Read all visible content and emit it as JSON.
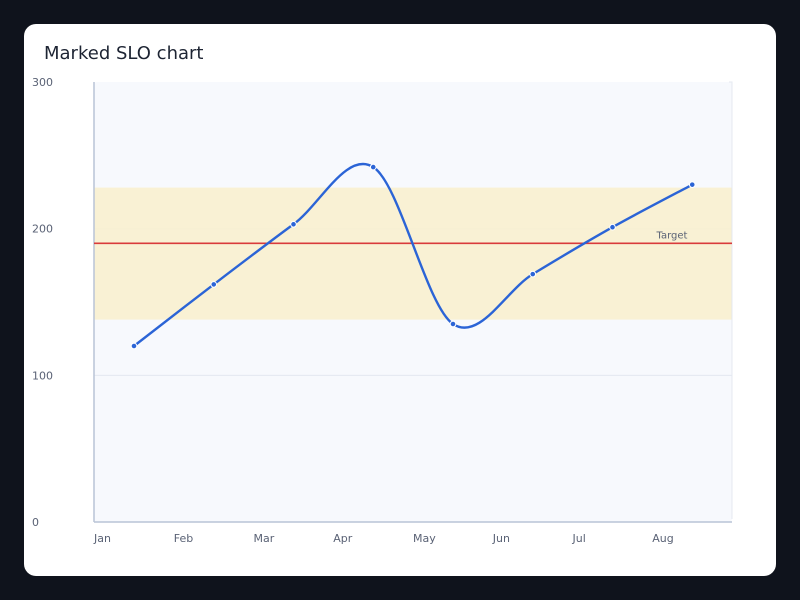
{
  "title": "Marked SLO chart",
  "chart_data": {
    "type": "line",
    "title": "Marked SLO chart",
    "xlabel": "",
    "ylabel": "",
    "categories": [
      "Jan",
      "Feb",
      "Mar",
      "Apr",
      "May",
      "Jun",
      "Jul",
      "Aug"
    ],
    "series": [
      {
        "values": [
          120,
          162,
          203,
          242,
          135,
          169,
          201,
          230
        ]
      }
    ],
    "ylim": [
      0,
      300
    ],
    "yticks": [
      "0",
      "100",
      "200",
      "300"
    ],
    "target": {
      "label": "Target",
      "value": 190
    },
    "band": {
      "low": 138,
      "high": 228
    },
    "grid": true,
    "colors": {
      "line": "#2b64d6",
      "target": "#d93b3b",
      "band": "#f8f0cf",
      "plot_bg": "#f7f9fd",
      "axis": "#b9c4d6",
      "grid": "#e4e8f0"
    }
  }
}
